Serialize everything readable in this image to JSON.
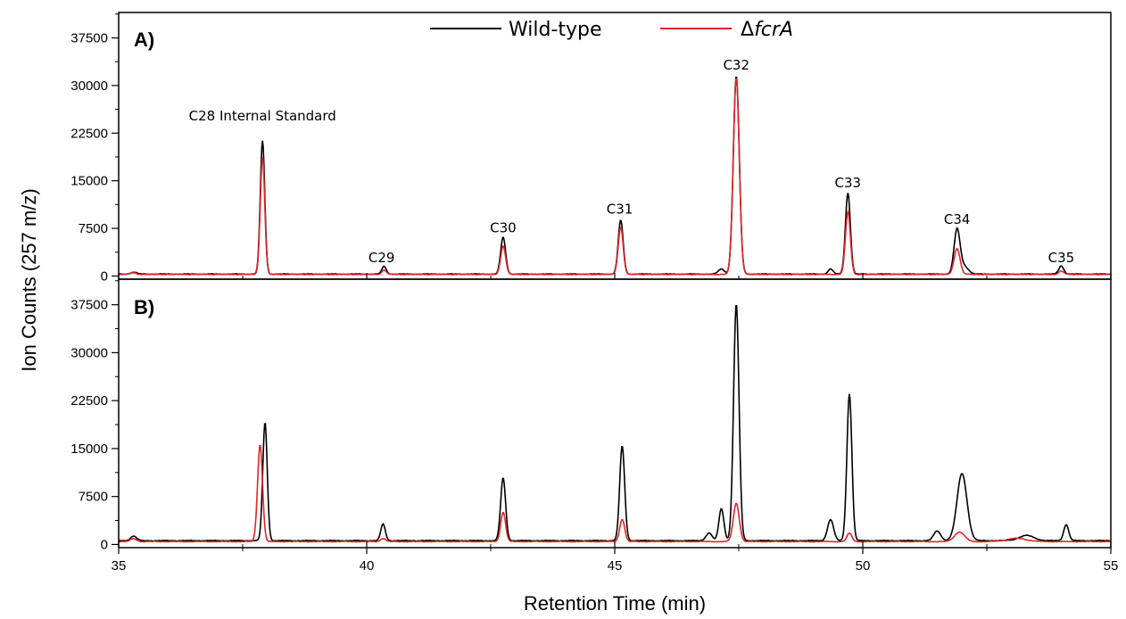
{
  "chart_data": {
    "type": "line",
    "xlabel": "Retention Time (min)",
    "ylabel": "Ion Counts (257 m/z)",
    "xlim": [
      35,
      55
    ],
    "xticks": [
      35,
      40,
      45,
      50,
      55
    ],
    "xtick_labels": [
      "35",
      "40",
      "45",
      "50",
      "55"
    ],
    "legend": {
      "placement": "top-center",
      "entries": [
        {
          "label": "Wild-type",
          "color": "#000000"
        },
        {
          "prefix": "Δ",
          "label_italic": "fcrA",
          "color": "#e0242a"
        }
      ]
    },
    "panels": [
      {
        "label": "A)",
        "ylim": [
          -500,
          41500
        ],
        "yticks": [
          0,
          7500,
          15000,
          22500,
          30000,
          37500
        ],
        "ytick_labels": [
          "0",
          "7500",
          "15000",
          "22500",
          "30000",
          "37500"
        ],
        "annotations": [
          {
            "text": "C28 Internal Standard",
            "x": 37.9,
            "y": 24500
          },
          {
            "text": "C29",
            "x": 40.3,
            "y": 2200
          },
          {
            "text": "C30",
            "x": 42.75,
            "y": 6900
          },
          {
            "text": "C31",
            "x": 45.1,
            "y": 9800
          },
          {
            "text": "C32",
            "x": 47.45,
            "y": 32500
          },
          {
            "text": "C33",
            "x": 49.7,
            "y": 14000
          },
          {
            "text": "C34",
            "x": 51.9,
            "y": 8200
          },
          {
            "text": "C35",
            "x": 54.0,
            "y": 2200
          }
        ],
        "series": [
          {
            "color": "#000000",
            "baseline": 300,
            "peaks": [
              {
                "x": 35.3,
                "h": 300,
                "w": 0.06
              },
              {
                "x": 37.9,
                "h": 21000,
                "w": 0.045
              },
              {
                "x": 40.35,
                "h": 1200,
                "w": 0.045
              },
              {
                "x": 42.75,
                "h": 5800,
                "w": 0.05
              },
              {
                "x": 45.12,
                "h": 8500,
                "w": 0.05
              },
              {
                "x": 47.15,
                "h": 800,
                "w": 0.06
              },
              {
                "x": 47.45,
                "h": 31200,
                "w": 0.06
              },
              {
                "x": 49.35,
                "h": 800,
                "w": 0.05
              },
              {
                "x": 49.7,
                "h": 12800,
                "w": 0.05
              },
              {
                "x": 51.9,
                "h": 7000,
                "w": 0.06
              },
              {
                "x": 52.05,
                "h": 1200,
                "w": 0.08
              },
              {
                "x": 54.0,
                "h": 1300,
                "w": 0.05
              }
            ]
          },
          {
            "color": "#e0242a",
            "baseline": 250,
            "peaks": [
              {
                "x": 35.3,
                "h": 250,
                "w": 0.06
              },
              {
                "x": 37.9,
                "h": 18500,
                "w": 0.045
              },
              {
                "x": 40.35,
                "h": 700,
                "w": 0.045
              },
              {
                "x": 42.75,
                "h": 4500,
                "w": 0.05
              },
              {
                "x": 45.12,
                "h": 7500,
                "w": 0.05
              },
              {
                "x": 47.45,
                "h": 31000,
                "w": 0.06
              },
              {
                "x": 49.7,
                "h": 9800,
                "w": 0.05
              },
              {
                "x": 51.9,
                "h": 4100,
                "w": 0.06
              },
              {
                "x": 54.0,
                "h": 500,
                "w": 0.05
              }
            ]
          }
        ]
      },
      {
        "label": "B)",
        "ylim": [
          -500,
          41500
        ],
        "yticks": [
          0,
          7500,
          15000,
          22500,
          30000,
          37500
        ],
        "ytick_labels": [
          "0",
          "7500",
          "15000",
          "22500",
          "30000",
          "37500"
        ],
        "annotations": [],
        "series": [
          {
            "color": "#000000",
            "baseline": 600,
            "peaks": [
              {
                "x": 35.3,
                "h": 700,
                "w": 0.06
              },
              {
                "x": 37.95,
                "h": 18500,
                "w": 0.045
              },
              {
                "x": 40.33,
                "h": 2600,
                "w": 0.045
              },
              {
                "x": 42.75,
                "h": 9800,
                "w": 0.05
              },
              {
                "x": 45.15,
                "h": 14800,
                "w": 0.05
              },
              {
                "x": 46.9,
                "h": 1200,
                "w": 0.06
              },
              {
                "x": 47.15,
                "h": 5000,
                "w": 0.05
              },
              {
                "x": 47.45,
                "h": 37000,
                "w": 0.055
              },
              {
                "x": 49.35,
                "h": 3300,
                "w": 0.06
              },
              {
                "x": 49.73,
                "h": 23000,
                "w": 0.05
              },
              {
                "x": 51.5,
                "h": 1500,
                "w": 0.07
              },
              {
                "x": 52.0,
                "h": 10500,
                "w": 0.1
              },
              {
                "x": 53.3,
                "h": 800,
                "w": 0.15
              },
              {
                "x": 54.1,
                "h": 2500,
                "w": 0.05
              }
            ]
          },
          {
            "color": "#e0242a",
            "baseline": 450,
            "peaks": [
              {
                "x": 35.3,
                "h": 450,
                "w": 0.06
              },
              {
                "x": 37.85,
                "h": 15200,
                "w": 0.05
              },
              {
                "x": 40.33,
                "h": 500,
                "w": 0.05
              },
              {
                "x": 42.75,
                "h": 4600,
                "w": 0.05
              },
              {
                "x": 45.15,
                "h": 3500,
                "w": 0.05
              },
              {
                "x": 47.45,
                "h": 6000,
                "w": 0.06
              },
              {
                "x": 49.73,
                "h": 1300,
                "w": 0.05
              },
              {
                "x": 51.95,
                "h": 1500,
                "w": 0.1
              },
              {
                "x": 53.1,
                "h": 500,
                "w": 0.2
              }
            ]
          }
        ]
      }
    ]
  }
}
